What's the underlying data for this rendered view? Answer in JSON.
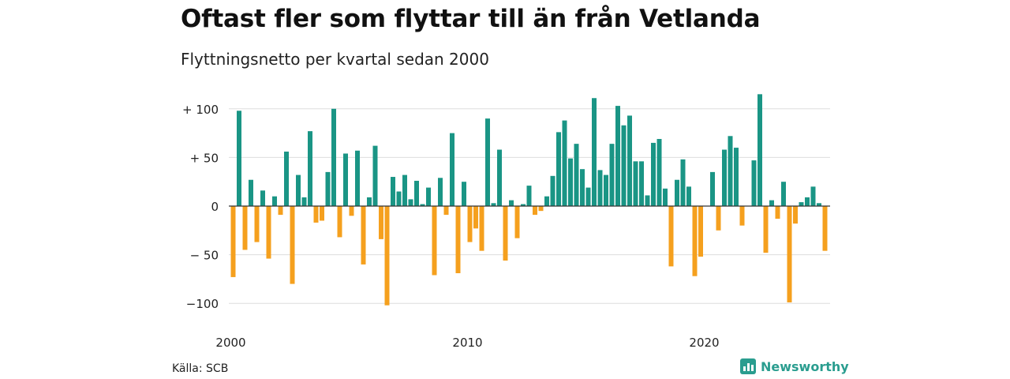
{
  "title": "Oftast fler som flyttar till än från Vetlanda",
  "subtitle": "Flyttningsnetto per kvartal sedan 2000",
  "source": "Källa: SCB",
  "brand": "Newsworthy",
  "colors": {
    "positive": "#1a9585",
    "negative": "#f5a01e",
    "grid": "#dddddd",
    "axis": "#333333",
    "brand": "#2a9d8f"
  },
  "chart_data": {
    "type": "bar",
    "title": "Oftast fler som flyttar till än från Vetlanda",
    "subtitle": "Flyttningsnetto per kvartal sedan 2000",
    "xlabel": "",
    "ylabel": "",
    "ylim": [
      -110,
      120
    ],
    "grid": true,
    "legend": "none",
    "y_ticks": [
      {
        "value": 100,
        "label": "+ 100"
      },
      {
        "value": 50,
        "label": "+  50"
      },
      {
        "value": 0,
        "label": "0"
      },
      {
        "value": -50,
        "label": "− 50"
      },
      {
        "value": -100,
        "label": "−100"
      }
    ],
    "x_ticks": [
      {
        "index": 0,
        "label": "2000"
      },
      {
        "index": 40,
        "label": "2010"
      },
      {
        "index": 80,
        "label": "2020"
      }
    ],
    "categories": [
      "2000 Q1",
      "2000 Q2",
      "2000 Q3",
      "2000 Q4",
      "2001 Q1",
      "2001 Q2",
      "2001 Q3",
      "2001 Q4",
      "2002 Q1",
      "2002 Q2",
      "2002 Q3",
      "2002 Q4",
      "2003 Q1",
      "2003 Q2",
      "2003 Q3",
      "2003 Q4",
      "2004 Q1",
      "2004 Q2",
      "2004 Q3",
      "2004 Q4",
      "2005 Q1",
      "2005 Q2",
      "2005 Q3",
      "2005 Q4",
      "2006 Q1",
      "2006 Q2",
      "2006 Q3",
      "2006 Q4",
      "2007 Q1",
      "2007 Q2",
      "2007 Q3",
      "2007 Q4",
      "2008 Q1",
      "2008 Q2",
      "2008 Q3",
      "2008 Q4",
      "2009 Q1",
      "2009 Q2",
      "2009 Q3",
      "2009 Q4",
      "2010 Q1",
      "2010 Q2",
      "2010 Q3",
      "2010 Q4",
      "2011 Q1",
      "2011 Q2",
      "2011 Q3",
      "2011 Q4",
      "2012 Q1",
      "2012 Q2",
      "2012 Q3",
      "2012 Q4",
      "2013 Q1",
      "2013 Q2",
      "2013 Q3",
      "2013 Q4",
      "2014 Q1",
      "2014 Q2",
      "2014 Q3",
      "2014 Q4",
      "2015 Q1",
      "2015 Q2",
      "2015 Q3",
      "2015 Q4",
      "2016 Q1",
      "2016 Q2",
      "2016 Q3",
      "2016 Q4",
      "2017 Q1",
      "2017 Q2",
      "2017 Q3",
      "2017 Q4",
      "2018 Q1",
      "2018 Q2",
      "2018 Q3",
      "2018 Q4",
      "2019 Q1",
      "2019 Q2",
      "2019 Q3",
      "2019 Q4",
      "2020 Q1",
      "2020 Q2",
      "2020 Q3",
      "2020 Q4",
      "2021 Q1",
      "2021 Q2",
      "2021 Q3",
      "2021 Q4",
      "2022 Q1",
      "2022 Q2",
      "2022 Q3",
      "2022 Q4",
      "2023 Q1",
      "2023 Q2",
      "2023 Q3",
      "2023 Q4",
      "2024 Q1",
      "2024 Q2",
      "2024 Q3",
      "2024 Q4",
      "2025 Q1"
    ],
    "values": [
      -73,
      98,
      -45,
      27,
      -37,
      16,
      -54,
      10,
      -9,
      56,
      -80,
      32,
      9,
      77,
      -17,
      -15,
      35,
      100,
      -32,
      54,
      -10,
      57,
      -60,
      9,
      62,
      -34,
      -102,
      30,
      15,
      32,
      7,
      26,
      2,
      19,
      -71,
      29,
      -9,
      75,
      -69,
      25,
      -37,
      -23,
      -46,
      90,
      3,
      58,
      -56,
      6,
      -33,
      2,
      21,
      -9,
      -5,
      10,
      31,
      76,
      88,
      49,
      64,
      38,
      19,
      111,
      37,
      32,
      64,
      103,
      83,
      93,
      46,
      46,
      11,
      65,
      69,
      18,
      -62,
      27,
      48,
      20,
      -72,
      -52,
      0,
      35,
      -25,
      58,
      72,
      60,
      -20,
      0,
      47,
      115,
      -48,
      6,
      -13,
      25,
      -99,
      -18,
      4,
      9,
      20,
      3,
      -46
    ]
  }
}
